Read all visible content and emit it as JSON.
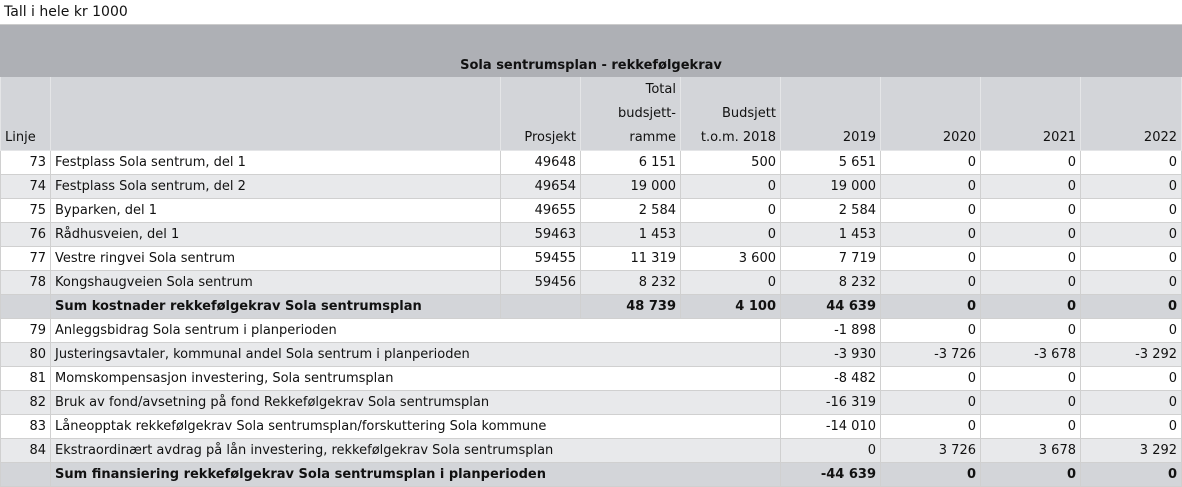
{
  "caption": "Tall i hele kr 1000",
  "title": "Sola sentrumsplan - rekkefølgekrav",
  "headers": {
    "linje": "Linje",
    "name": "",
    "prosjekt": "Prosjekt",
    "total": [
      "Total",
      "budsjett-",
      "ramme"
    ],
    "budsjett": [
      "Budsjett",
      "t.o.m. 2018"
    ],
    "y2019": "2019",
    "y2020": "2020",
    "y2021": "2021",
    "y2022": "2022"
  },
  "cost_rows": [
    {
      "linje": "73",
      "name": "Festplass Sola sentrum, del 1",
      "prosjekt": "49648",
      "total": "6 151",
      "budsjett": "500",
      "y2019": "5 651",
      "y2020": "0",
      "y2021": "0",
      "y2022": "0"
    },
    {
      "linje": "74",
      "name": "Festplass Sola sentrum, del 2",
      "prosjekt": "49654",
      "total": "19 000",
      "budsjett": "0",
      "y2019": "19 000",
      "y2020": "0",
      "y2021": "0",
      "y2022": "0"
    },
    {
      "linje": "75",
      "name": "Byparken, del 1",
      "prosjekt": "49655",
      "total": "2 584",
      "budsjett": "0",
      "y2019": "2 584",
      "y2020": "0",
      "y2021": "0",
      "y2022": "0"
    },
    {
      "linje": "76",
      "name": "Rådhusveien, del 1",
      "prosjekt": "59463",
      "total": "1 453",
      "budsjett": "0",
      "y2019": "1 453",
      "y2020": "0",
      "y2021": "0",
      "y2022": "0"
    },
    {
      "linje": "77",
      "name": "Vestre ringvei Sola sentrum",
      "prosjekt": "59455",
      "total": "11 319",
      "budsjett": "3 600",
      "y2019": "7 719",
      "y2020": "0",
      "y2021": "0",
      "y2022": "0"
    },
    {
      "linje": "78",
      "name": "Kongshaugveien Sola sentrum",
      "prosjekt": "59456",
      "total": "8 232",
      "budsjett": "0",
      "y2019": "8 232",
      "y2020": "0",
      "y2021": "0",
      "y2022": "0"
    }
  ],
  "cost_sum": {
    "name": "Sum kostnader rekkefølgekrav Sola sentrumsplan",
    "total": "48 739",
    "budsjett": "4 100",
    "y2019": "44 639",
    "y2020": "0",
    "y2021": "0",
    "y2022": "0"
  },
  "fin_rows": [
    {
      "linje": "79",
      "name": "Anleggsbidrag Sola sentrum i planperioden",
      "y2019": "-1 898",
      "y2020": "0",
      "y2021": "0",
      "y2022": "0"
    },
    {
      "linje": "80",
      "name": "Justeringsavtaler, kommunal andel Sola sentrum i planperioden",
      "y2019": "-3 930",
      "y2020": "-3 726",
      "y2021": "-3 678",
      "y2022": "-3 292"
    },
    {
      "linje": "81",
      "name": "Momskompensasjon investering, Sola sentrumsplan",
      "y2019": "-8 482",
      "y2020": "0",
      "y2021": "0",
      "y2022": "0"
    },
    {
      "linje": "82",
      "name": "Bruk av fond/avsetning på fond Rekkefølgekrav Sola sentrumsplan",
      "y2019": "-16 319",
      "y2020": "0",
      "y2021": "0",
      "y2022": "0"
    },
    {
      "linje": "83",
      "name": "Låneopptak rekkefølgekrav Sola sentrumsplan/forskuttering Sola kommune",
      "y2019": "-14 010",
      "y2020": "0",
      "y2021": "0",
      "y2022": "0"
    },
    {
      "linje": "84",
      "name": "Ekstraordinært avdrag på lån investering, rekkefølgekrav Sola sentrumsplan",
      "y2019": "0",
      "y2020": "3 726",
      "y2021": "3 678",
      "y2022": "3 292"
    }
  ],
  "fin_sum": {
    "name": "Sum finansiering rekkefølgekrav Sola sentrumsplan i planperioden",
    "y2019": "-44 639",
    "y2020": "0",
    "y2021": "0",
    "y2022": "0"
  }
}
